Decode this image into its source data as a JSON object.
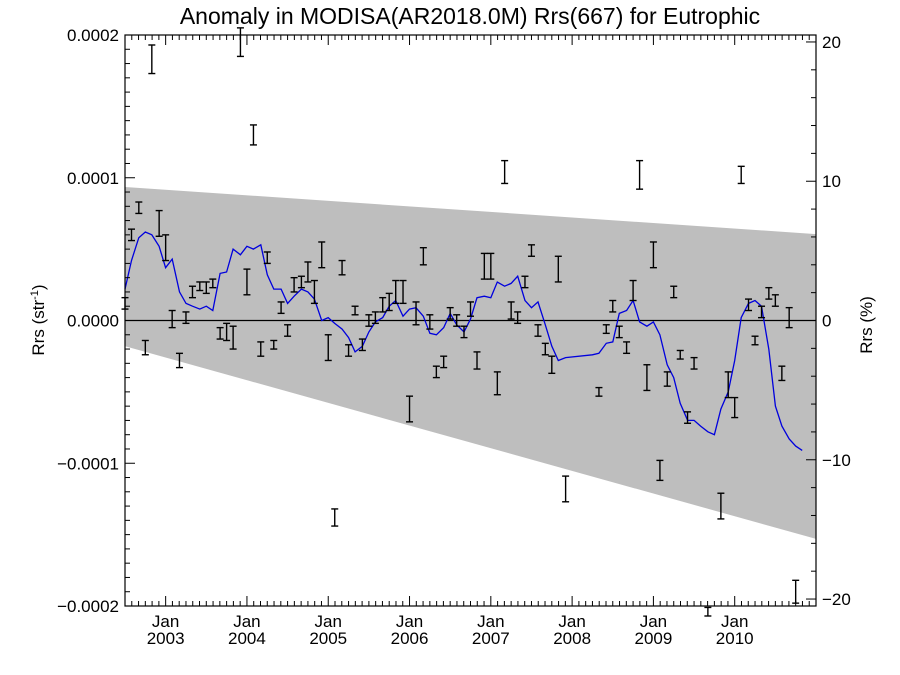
{
  "chart_data": {
    "type": "line",
    "title": "Anomaly in MODISA(AR2018.0M) Rrs(667) for Eutrophic",
    "ylabel_left": "Rrs (str",
    "ylabel_left_sup": "-1",
    "ylabel_left_close": ")",
    "ylabel_right": "Rrs (%)",
    "xlim": [
      2002.5,
      2011.0
    ],
    "ylim": [
      -0.0002,
      0.0002
    ],
    "y2lim": [
      -20.5,
      20.5
    ],
    "left_ticks": [
      "0.0002",
      "0.0001",
      "0.0000",
      "−0.0001",
      "−0.0002"
    ],
    "left_tick_values": [
      0.0002,
      0.0001,
      0.0,
      -0.0001,
      -0.0002
    ],
    "right_ticks": [
      "20",
      "10",
      "0",
      "−10",
      "−20"
    ],
    "right_tick_values": [
      20,
      10,
      0,
      -10,
      -20
    ],
    "x_month_label": "Jan",
    "x_years": [
      "2003",
      "2004",
      "2005",
      "2006",
      "2007",
      "2008",
      "2009",
      "2010"
    ],
    "x_year_values": [
      2003,
      2004,
      2005,
      2006,
      2007,
      2008,
      2009,
      2010
    ],
    "zero_line": 0.0,
    "colors": {
      "running_mean": "#0000dd",
      "band": "#bebebe",
      "errorbars": "#000000"
    },
    "band": {
      "upper": [
        [
          2002.5,
          9.35e-05
        ],
        [
          2011.0,
          6.05e-05
        ]
      ],
      "lower": [
        [
          2002.5,
          -1.8e-05
        ],
        [
          2011.0,
          -0.000153
        ]
      ]
    },
    "running_mean": [
      [
        2002.5,
        2.2e-05
      ],
      [
        2002.58,
        4.2e-05
      ],
      [
        2002.67,
        5.8e-05
      ],
      [
        2002.75,
        6.2e-05
      ],
      [
        2002.83,
        6e-05
      ],
      [
        2002.92,
        5.2e-05
      ],
      [
        2003.0,
        3.7e-05
      ],
      [
        2003.08,
        4.3e-05
      ],
      [
        2003.17,
        2e-05
      ],
      [
        2003.25,
        1.2e-05
      ],
      [
        2003.33,
        1e-05
      ],
      [
        2003.42,
        8e-06
      ],
      [
        2003.5,
        1e-05
      ],
      [
        2003.58,
        7e-06
      ],
      [
        2003.67,
        3.3e-05
      ],
      [
        2003.75,
        3.4e-05
      ],
      [
        2003.83,
        5e-05
      ],
      [
        2003.92,
        4.6e-05
      ],
      [
        2004.0,
        5.2e-05
      ],
      [
        2004.08,
        5e-05
      ],
      [
        2004.17,
        5.3e-05
      ],
      [
        2004.25,
        3.2e-05
      ],
      [
        2004.33,
        2.2e-05
      ],
      [
        2004.42,
        2.2e-05
      ],
      [
        2004.5,
        1.2e-05
      ],
      [
        2004.58,
        1.7e-05
      ],
      [
        2004.67,
        2.2e-05
      ],
      [
        2004.75,
        2e-05
      ],
      [
        2004.83,
        1.5e-05
      ],
      [
        2004.92,
        0.0
      ],
      [
        2005.0,
        2e-06
      ],
      [
        2005.08,
        -2e-06
      ],
      [
        2005.17,
        -6e-06
      ],
      [
        2005.25,
        -1.2e-05
      ],
      [
        2005.33,
        -2.2e-05
      ],
      [
        2005.42,
        -1.8e-05
      ],
      [
        2005.5,
        -8e-06
      ],
      [
        2005.58,
        -1e-06
      ],
      [
        2005.67,
        2e-06
      ],
      [
        2005.75,
        1e-05
      ],
      [
        2005.83,
        1.4e-05
      ],
      [
        2005.92,
        3e-06
      ],
      [
        2006.0,
        8e-06
      ],
      [
        2006.08,
        9e-06
      ],
      [
        2006.17,
        3e-06
      ],
      [
        2006.25,
        -9e-06
      ],
      [
        2006.33,
        -1e-05
      ],
      [
        2006.42,
        -5e-06
      ],
      [
        2006.5,
        5e-06
      ],
      [
        2006.58,
        -3e-06
      ],
      [
        2006.67,
        -8e-06
      ],
      [
        2006.75,
        1e-06
      ],
      [
        2006.83,
        1.6e-05
      ],
      [
        2006.92,
        1.7e-05
      ],
      [
        2007.0,
        1.6e-05
      ],
      [
        2007.08,
        2.7e-05
      ],
      [
        2007.17,
        2.4e-05
      ],
      [
        2007.25,
        2.6e-05
      ],
      [
        2007.33,
        3.1e-05
      ],
      [
        2007.42,
        1.4e-05
      ],
      [
        2007.5,
        9e-06
      ],
      [
        2007.58,
        1.3e-05
      ],
      [
        2007.67,
        -3e-06
      ],
      [
        2007.75,
        -1.8e-05
      ],
      [
        2007.83,
        -2.8e-05
      ],
      [
        2007.92,
        -2.6e-05
      ],
      [
        2008.25,
        -2.4e-05
      ],
      [
        2008.33,
        -2.3e-05
      ],
      [
        2008.42,
        -1.6e-05
      ],
      [
        2008.5,
        -1.5e-05
      ],
      [
        2008.58,
        5e-06
      ],
      [
        2008.67,
        7e-06
      ],
      [
        2008.75,
        1.4e-05
      ],
      [
        2008.83,
        -1e-06
      ],
      [
        2008.92,
        -4e-06
      ],
      [
        2009.0,
        -1e-06
      ],
      [
        2009.08,
        -1e-05
      ],
      [
        2009.17,
        -3.1e-05
      ],
      [
        2009.25,
        -4e-05
      ],
      [
        2009.33,
        -5.8e-05
      ],
      [
        2009.42,
        -7e-05
      ],
      [
        2009.5,
        -7e-05
      ],
      [
        2009.58,
        -7.4e-05
      ],
      [
        2009.67,
        -7.8e-05
      ],
      [
        2009.75,
        -8e-05
      ],
      [
        2009.83,
        -6.2e-05
      ],
      [
        2009.92,
        -5e-05
      ],
      [
        2010.0,
        -2.8e-05
      ],
      [
        2010.08,
        2e-06
      ],
      [
        2010.17,
        1.2e-05
      ],
      [
        2010.25,
        1.4e-05
      ],
      [
        2010.33,
        1e-05
      ],
      [
        2010.42,
        -2e-05
      ],
      [
        2010.5,
        -6e-05
      ],
      [
        2010.58,
        -7.4e-05
      ],
      [
        2010.67,
        -8.3e-05
      ],
      [
        2010.75,
        -8.8e-05
      ],
      [
        2010.83,
        -9.1e-05
      ]
    ],
    "error_bars": [
      [
        2002.5,
        1.2e-05,
        4e-06
      ],
      [
        2002.58,
        6e-05,
        4e-06
      ],
      [
        2002.67,
        7.9e-05,
        4e-06
      ],
      [
        2002.75,
        -1.9e-05,
        5e-06
      ],
      [
        2002.83,
        0.000183,
        1e-05
      ],
      [
        2002.92,
        6.8e-05,
        9e-06
      ],
      [
        2003.0,
        5.1e-05,
        9e-06
      ],
      [
        2003.08,
        1e-06,
        6e-06
      ],
      [
        2003.17,
        -2.8e-05,
        5e-06
      ],
      [
        2003.25,
        2e-06,
        4e-06
      ],
      [
        2003.33,
        2e-05,
        4e-06
      ],
      [
        2003.42,
        2.4e-05,
        3e-06
      ],
      [
        2003.5,
        2.3e-05,
        4e-06
      ],
      [
        2003.58,
        2.6e-05,
        3e-06
      ],
      [
        2003.67,
        -9e-06,
        4e-06
      ],
      [
        2003.75,
        -8e-06,
        6e-06
      ],
      [
        2003.83,
        -1.2e-05,
        8e-06
      ],
      [
        2003.92,
        0.000195,
        1e-05
      ],
      [
        2004.0,
        2.7e-05,
        9e-06
      ],
      [
        2004.08,
        0.00013,
        7e-06
      ],
      [
        2004.17,
        -2e-05,
        5e-06
      ],
      [
        2004.25,
        4.4e-05,
        4e-06
      ],
      [
        2004.33,
        -1.7e-05,
        3e-06
      ],
      [
        2004.42,
        9e-06,
        4e-06
      ],
      [
        2004.5,
        -7e-06,
        4e-06
      ],
      [
        2004.58,
        2.5e-05,
        5e-06
      ],
      [
        2004.67,
        2.7e-05,
        4e-06
      ],
      [
        2004.75,
        3.4e-05,
        7e-06
      ],
      [
        2004.83,
        2e-05,
        8e-06
      ],
      [
        2004.92,
        4.6e-05,
        9e-06
      ],
      [
        2005.0,
        -1.9e-05,
        9e-06
      ],
      [
        2005.08,
        -0.000138,
        6e-06
      ],
      [
        2005.17,
        3.7e-05,
        5e-06
      ],
      [
        2005.25,
        -2.1e-05,
        4e-06
      ],
      [
        2005.33,
        7e-06,
        3e-06
      ],
      [
        2005.42,
        -1.7e-05,
        4e-06
      ],
      [
        2005.5,
        0.0,
        4e-06
      ],
      [
        2005.58,
        2e-06,
        4e-06
      ],
      [
        2005.67,
        1.1e-05,
        5e-06
      ],
      [
        2005.75,
        1.3e-05,
        6e-06
      ],
      [
        2005.83,
        2e-05,
        8e-06
      ],
      [
        2005.92,
        2e-05,
        8e-06
      ],
      [
        2006.0,
        -6.2e-05,
        9e-06
      ],
      [
        2006.08,
        5e-06,
        8e-06
      ],
      [
        2006.17,
        4.5e-05,
        6e-06
      ],
      [
        2006.25,
        -1e-06,
        5e-06
      ],
      [
        2006.33,
        -3.6e-05,
        4e-06
      ],
      [
        2006.42,
        -2.9e-05,
        4e-06
      ],
      [
        2006.5,
        5e-06,
        4e-06
      ],
      [
        2006.58,
        0.0,
        4e-06
      ],
      [
        2006.67,
        -8e-06,
        4e-06
      ],
      [
        2006.75,
        8e-06,
        5e-06
      ],
      [
        2006.83,
        -2.8e-05,
        6e-06
      ],
      [
        2006.92,
        3.8e-05,
        9e-06
      ],
      [
        2007.0,
        3.8e-05,
        9e-06
      ],
      [
        2007.08,
        -4.4e-05,
        8e-06
      ],
      [
        2007.17,
        0.000104,
        8e-06
      ],
      [
        2007.25,
        7e-06,
        6e-06
      ],
      [
        2007.33,
        2e-06,
        4e-06
      ],
      [
        2007.42,
        2.7e-05,
        4e-06
      ],
      [
        2007.5,
        4.9e-05,
        4e-06
      ],
      [
        2007.58,
        -7e-06,
        4e-06
      ],
      [
        2007.67,
        -2e-05,
        4e-06
      ],
      [
        2007.75,
        -3.1e-05,
        6e-06
      ],
      [
        2007.83,
        3.6e-05,
        9e-06
      ],
      [
        2007.92,
        -0.000118,
        9e-06
      ],
      [
        2008.33,
        -5e-05,
        3e-06
      ],
      [
        2008.42,
        -6e-06,
        3e-06
      ],
      [
        2008.5,
        1e-05,
        4e-06
      ],
      [
        2008.58,
        -8e-06,
        4e-06
      ],
      [
        2008.67,
        -1.9e-05,
        4e-06
      ],
      [
        2008.75,
        2.1e-05,
        7e-06
      ],
      [
        2008.83,
        0.000102,
        1e-05
      ],
      [
        2008.92,
        -4e-05,
        9e-06
      ],
      [
        2009.0,
        4.6e-05,
        9e-06
      ],
      [
        2009.08,
        -0.000105,
        7e-06
      ],
      [
        2009.17,
        -4.1e-05,
        5e-06
      ],
      [
        2009.25,
        2e-05,
        4e-06
      ],
      [
        2009.33,
        -2.4e-05,
        3e-06
      ],
      [
        2009.42,
        -6.8e-05,
        4e-06
      ],
      [
        2009.5,
        -3e-05,
        4e-06
      ],
      [
        2009.67,
        -0.000204,
        3e-06
      ],
      [
        2009.83,
        -0.00013,
        9e-06
      ],
      [
        2009.92,
        -4.5e-05,
        9e-06
      ],
      [
        2010.0,
        -6.1e-05,
        7e-06
      ],
      [
        2010.08,
        0.000102,
        6e-06
      ],
      [
        2010.17,
        1.1e-05,
        4e-06
      ],
      [
        2010.25,
        -1.4e-05,
        3e-06
      ],
      [
        2010.33,
        6e-06,
        4e-06
      ],
      [
        2010.42,
        1.9e-05,
        4e-06
      ],
      [
        2010.5,
        1.4e-05,
        4e-06
      ],
      [
        2010.58,
        -3.7e-05,
        5e-06
      ],
      [
        2010.67,
        2e-06,
        7e-06
      ],
      [
        2010.75,
        -0.00019,
        8e-06
      ]
    ]
  }
}
